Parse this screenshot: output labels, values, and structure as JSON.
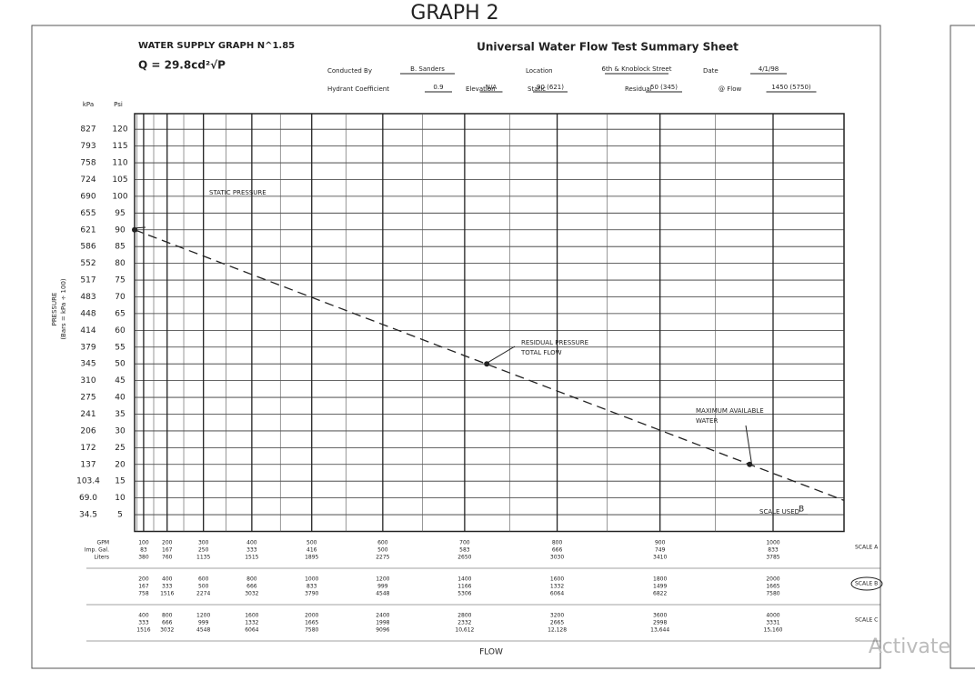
{
  "page_title": "GRAPH 2",
  "sheet": {
    "graph_title": "WATER SUPPLY GRAPH N^1.85",
    "formula": "Q = 29.8cd²√P",
    "sheet_title": "Universal Water Flow Test Summary Sheet",
    "fields": [
      {
        "label": "Conducted By",
        "value": "B. Sanders"
      },
      {
        "label": "Location",
        "value": "6th & Knoblock Street"
      },
      {
        "label": "Date",
        "value": "4/1/98"
      },
      {
        "label": "Hydrant Coefficient",
        "value": "0.9"
      },
      {
        "label": "Elevation",
        "value": "N/A"
      },
      {
        "label": "Static",
        "value": "90 (621)"
      },
      {
        "label": "Residual",
        "value": "50 (345)"
      },
      {
        "label": "@ Flow",
        "value": "1450 (5750)"
      }
    ]
  },
  "y_axis": {
    "label": "PRESSURE",
    "sublabel": "(Bars = kPa ÷ 100)",
    "unit_kpa": "kPa",
    "unit_psi": "Psi",
    "ticks": [
      {
        "psi": 120,
        "kpa": "827"
      },
      {
        "psi": 115,
        "kpa": "793"
      },
      {
        "psi": 110,
        "kpa": "758"
      },
      {
        "psi": 105,
        "kpa": "724"
      },
      {
        "psi": 100,
        "kpa": "690"
      },
      {
        "psi": 95,
        "kpa": "655"
      },
      {
        "psi": 90,
        "kpa": "621"
      },
      {
        "psi": 85,
        "kpa": "586"
      },
      {
        "psi": 80,
        "kpa": "552"
      },
      {
        "psi": 75,
        "kpa": "517"
      },
      {
        "psi": 70,
        "kpa": "483"
      },
      {
        "psi": 65,
        "kpa": "448"
      },
      {
        "psi": 60,
        "kpa": "414"
      },
      {
        "psi": 55,
        "kpa": "379"
      },
      {
        "psi": 50,
        "kpa": "345"
      },
      {
        "psi": 45,
        "kpa": "310"
      },
      {
        "psi": 40,
        "kpa": "275"
      },
      {
        "psi": 35,
        "kpa": "241"
      },
      {
        "psi": 30,
        "kpa": "206"
      },
      {
        "psi": 25,
        "kpa": "172"
      },
      {
        "psi": 20,
        "kpa": "137"
      },
      {
        "psi": 15,
        "kpa": "103.4"
      },
      {
        "psi": 10,
        "kpa": "69.0"
      },
      {
        "psi": 5,
        "kpa": "34.5"
      }
    ]
  },
  "row_labels": [
    "GPM",
    "Imp. Gal.",
    "Liters"
  ],
  "scales": [
    {
      "name": "SCALE A",
      "gpm": [
        100,
        200,
        300,
        400,
        500,
        600,
        700,
        800,
        900,
        1000
      ],
      "imp": [
        83,
        167,
        250,
        333,
        416,
        500,
        583,
        666,
        749,
        833
      ],
      "liters": [
        "380",
        "760",
        "1135",
        "1515",
        "1895",
        "2275",
        "2650",
        "3030",
        "3410",
        "3785"
      ]
    },
    {
      "name": "SCALE B",
      "gpm": [
        200,
        400,
        600,
        800,
        1000,
        1200,
        1400,
        1600,
        1800,
        2000
      ],
      "imp": [
        167,
        333,
        500,
        666,
        833,
        999,
        1166,
        1332,
        1499,
        1665
      ],
      "liters": [
        "758",
        "1516",
        "2274",
        "3032",
        "3790",
        "4548",
        "5306",
        "6064",
        "6822",
        "7580"
      ]
    },
    {
      "name": "SCALE C",
      "gpm": [
        400,
        800,
        1200,
        1600,
        2000,
        2400,
        2800,
        3200,
        3600,
        4000
      ],
      "imp": [
        333,
        666,
        999,
        1332,
        1665,
        1998,
        2332,
        2665,
        2998,
        3331
      ],
      "liters": [
        "1516",
        "3032",
        "4548",
        "6064",
        "7580",
        "9096",
        "10,612",
        "12,128",
        "13,644",
        "15,160"
      ]
    }
  ],
  "scale_used_label": "SCALE USED",
  "scale_used": "B",
  "x_label": "FLOW",
  "points": [
    {
      "label": "STATIC PRESSURE",
      "gpm": 0,
      "psi": 90
    },
    {
      "label": [
        "RESIDUAL PRESSURE",
        "TOTAL FLOW"
      ],
      "gpm": 1450,
      "psi": 50
    },
    {
      "label": [
        "MAXIMUM AVAILABLE",
        "WATER"
      ],
      "gpm": 1960,
      "psi": 20
    }
  ],
  "watermark": "Activate"
}
